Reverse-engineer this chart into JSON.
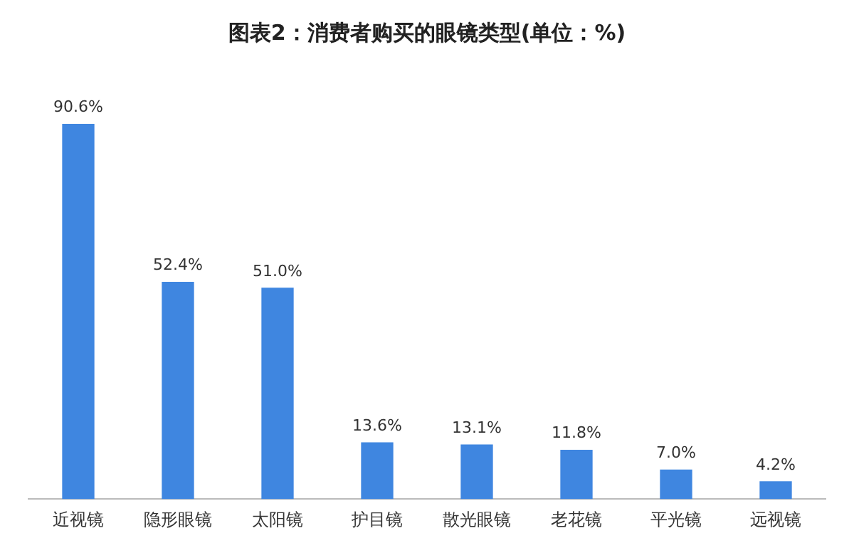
{
  "chart_data": {
    "type": "bar",
    "title": "图表2：消费者购买的眼镜类型(单位：%)",
    "categories": [
      "近视镜",
      "隐形眼镜",
      "太阳镜",
      "护目镜",
      "散光眼镜",
      "老花镜",
      "平光镜",
      "远视镜"
    ],
    "values": [
      90.6,
      52.4,
      51.0,
      13.6,
      13.1,
      11.8,
      7.0,
      4.2
    ],
    "value_labels": [
      "90.6%",
      "52.4%",
      "51.0%",
      "13.6%",
      "13.1%",
      "11.8%",
      "7.0%",
      "4.2%"
    ],
    "color": "#3f86e0",
    "grid": false,
    "legend": false
  }
}
